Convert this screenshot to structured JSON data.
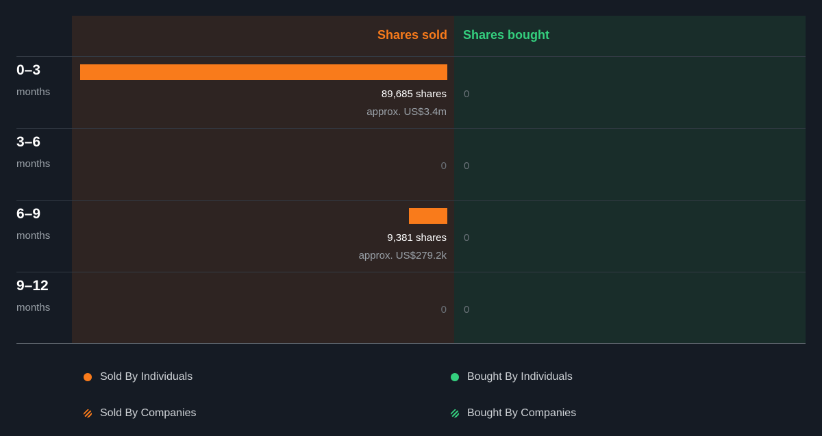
{
  "colors": {
    "sold": "#f97b1b",
    "bought": "#34cf7e",
    "sold_panel_bg": "#2e2422",
    "bought_panel_bg": "#192d2a"
  },
  "header": {
    "sold": "Shares sold",
    "bought": "Shares bought"
  },
  "chart_data": {
    "type": "bar",
    "categories": [
      "0–3 months",
      "3–6 months",
      "6–9 months",
      "9–12 months"
    ],
    "series": [
      {
        "name": "Shares sold",
        "values": [
          89685,
          0,
          9381,
          0
        ]
      },
      {
        "name": "Shares bought",
        "values": [
          0,
          0,
          0,
          0
        ]
      }
    ]
  },
  "periods": [
    {
      "label": "0–3",
      "sub": "months",
      "sold_shares": "89,685 shares",
      "sold_approx": "approx. US$3.4m",
      "sold_zero": "",
      "bought": "0"
    },
    {
      "label": "3–6",
      "sub": "months",
      "sold_shares": "",
      "sold_approx": "",
      "sold_zero": "0",
      "bought": "0"
    },
    {
      "label": "6–9",
      "sub": "months",
      "sold_shares": "9,381 shares",
      "sold_approx": "approx. US$279.2k",
      "sold_zero": "",
      "bought": "0"
    },
    {
      "label": "9–12",
      "sub": "months",
      "sold_shares": "",
      "sold_approx": "",
      "sold_zero": "0",
      "bought": "0"
    }
  ],
  "legend": {
    "sold_individuals": "Sold By Individuals",
    "bought_individuals": "Bought By Individuals",
    "sold_companies": "Sold By Companies",
    "bought_companies": "Bought By Companies"
  }
}
